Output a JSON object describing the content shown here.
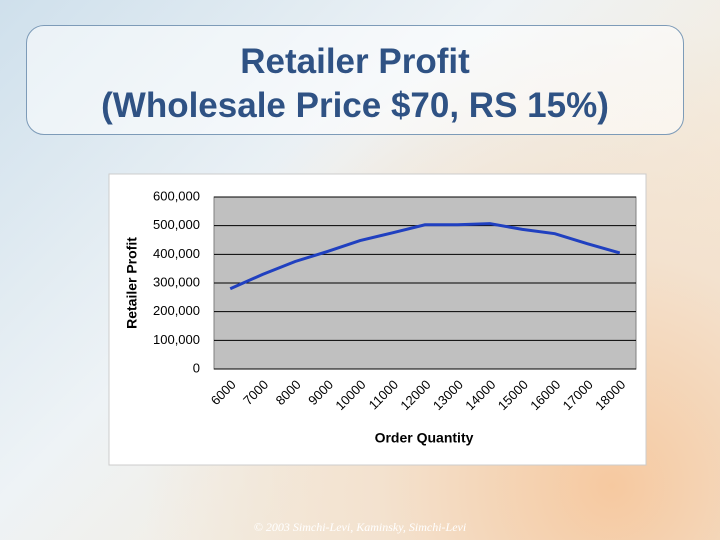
{
  "slide": {
    "title_lines": [
      "Retailer Profit",
      "(Wholesale Price $70, RS 15%)"
    ],
    "footer": "© 2003 Simchi-Levi, Kaminsky, Simchi-Levi"
  },
  "chart_data": {
    "type": "line",
    "x_label": "Order Quantity",
    "y_label": "Retailer Profit",
    "categories": [
      "6000",
      "7000",
      "8000",
      "9000",
      "10000",
      "11000",
      "12000",
      "13000",
      "14000",
      "15000",
      "16000",
      "17000",
      "18000"
    ],
    "series": [
      {
        "name": "Retailer Profit",
        "color": "#2040c0",
        "values": [
          280000,
          330000,
          375000,
          410000,
          448000,
          475000,
          503000,
          503000,
          507000,
          487000,
          472000,
          437000,
          405000
        ]
      }
    ],
    "ylim": [
      0,
      600000
    ],
    "yticks": [
      0,
      {
        "value": 100000,
        "label": "100,000"
      },
      {
        "value": 200000,
        "label": "200,000"
      },
      {
        "value": 300000,
        "label": "300,000"
      },
      {
        "value": 400000,
        "label": "400,000"
      },
      {
        "value": 500000,
        "label": "500,000"
      },
      {
        "value": 600000,
        "label": "600,000"
      }
    ],
    "grid": true,
    "plot_background": "#c0c0c0"
  }
}
